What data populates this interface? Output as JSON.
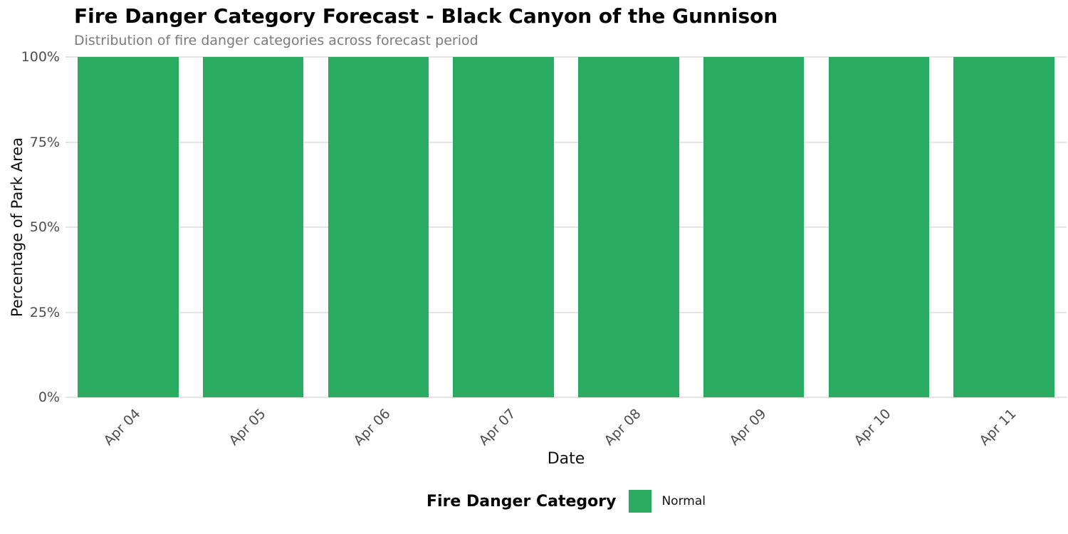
{
  "chart_data": {
    "type": "bar",
    "stacked": true,
    "title": "Fire Danger Category Forecast - Black Canyon of the Gunnison",
    "subtitle": "Distribution of fire danger categories across forecast period",
    "xlabel": "Date",
    "ylabel": "Percentage of Park Area",
    "categories": [
      "Apr 04",
      "Apr 05",
      "Apr 06",
      "Apr 07",
      "Apr 08",
      "Apr 09",
      "Apr 10",
      "Apr 11"
    ],
    "series": [
      {
        "name": "Normal",
        "color": "#2aab62",
        "values": [
          100,
          100,
          100,
          100,
          100,
          100,
          100,
          100
        ]
      }
    ],
    "ylim": [
      0,
      100
    ],
    "yticks": [
      0,
      25,
      50,
      75,
      100
    ],
    "ytick_labels": [
      "0%",
      "25%",
      "50%",
      "75%",
      "100%"
    ],
    "grid": true,
    "legend": {
      "title": "Fire Danger Category",
      "position": "bottom",
      "entries": [
        {
          "label": "Normal",
          "color": "#2aab62"
        }
      ]
    }
  },
  "colors": {
    "background": "#ffffff",
    "bar_green": "#2aab62",
    "gridline": "#e4e4e4",
    "tick_label": "#4d4d4d",
    "axis_title": "#111111",
    "subtitle_text": "#7b7b7b",
    "title_text": "#000000"
  }
}
